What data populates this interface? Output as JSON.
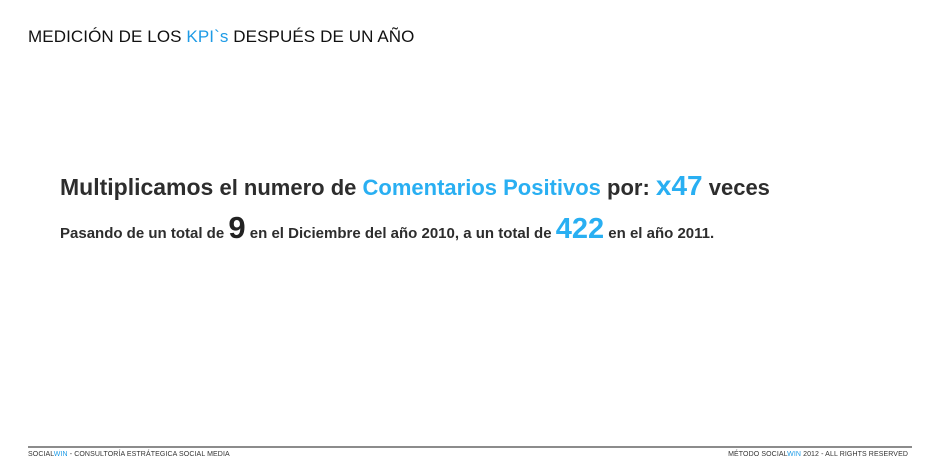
{
  "title": {
    "part1": "MEDICIÓN DE LOS ",
    "highlight": "KPI`s",
    "part2": " DESPUÉS DE UN AÑO"
  },
  "headline": {
    "word1": "Multiplicamos",
    "part1": " el numero de ",
    "highlight": "Comentarios Positivos",
    "part2": " por: ",
    "multiplier": "x47",
    "part3": " veces"
  },
  "subline": {
    "part1": "Pasando de un total de ",
    "value_start": "9",
    "part2": " en el Diciembre del año 2010, a un total de ",
    "value_end": "422",
    "part3": " en el año 2011."
  },
  "footer": {
    "left_brand_a": "SOCIAL",
    "left_brand_b": "WIN",
    "left_text": " - CONSULTORÍA ESTRÁTEGICA SOCIAL MEDIA",
    "right_prefix": "MÉTODO ",
    "right_brand_a": "SOCIAL",
    "right_brand_b": "WIN",
    "right_text": " 2012 - ALL RIGHTS RESERVED"
  },
  "colors": {
    "accent": "#1e9be6",
    "accent_bright": "#29aff2",
    "text_dark": "#2d2d2d",
    "rule": "#8c8c8c"
  }
}
